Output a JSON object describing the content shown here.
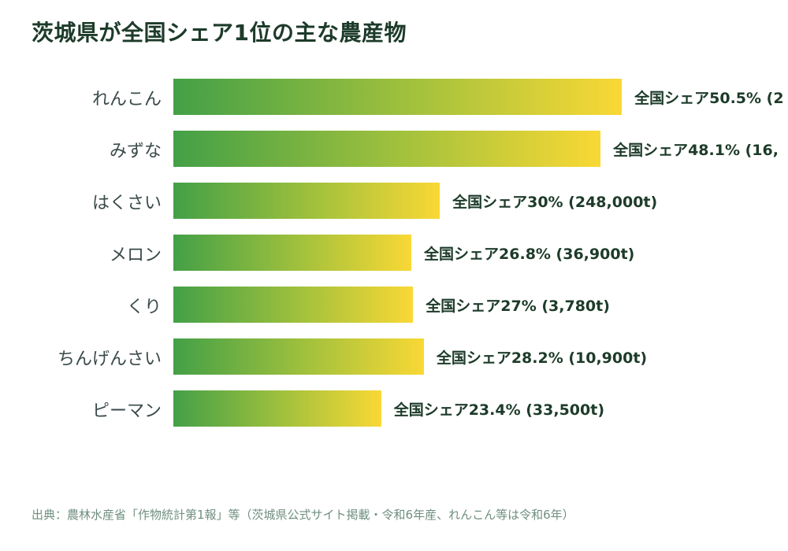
{
  "chart_data": {
    "type": "bar",
    "orientation": "horizontal",
    "title": "茨城県が全国シェア1位の主な農産物",
    "categories": [
      "れんこん",
      "みずな",
      "はくさい",
      "メロン",
      "くり",
      "ちんげんさい",
      "ピーマン"
    ],
    "values": [
      50.5,
      48.1,
      30,
      26.8,
      27,
      28.2,
      23.4
    ],
    "value_labels": [
      "全国シェア50.5% (2",
      "全国シェア48.1% (16,",
      "全国シェア30% (248,000t)",
      "全国シェア26.8% (36,900t)",
      "全国シェア27% (3,780t)",
      "全国シェア28.2% (10,900t)",
      "全国シェア23.4% (33,500t)"
    ],
    "bar_colors": [
      "#43a047",
      "#f9d835"
    ],
    "label_color": "#1d3b2a",
    "source": "出典：農林水産省「作物統計第1報」等（茨城県公式サイト掲載・令和6年産、れんこん等は令和6年）"
  }
}
